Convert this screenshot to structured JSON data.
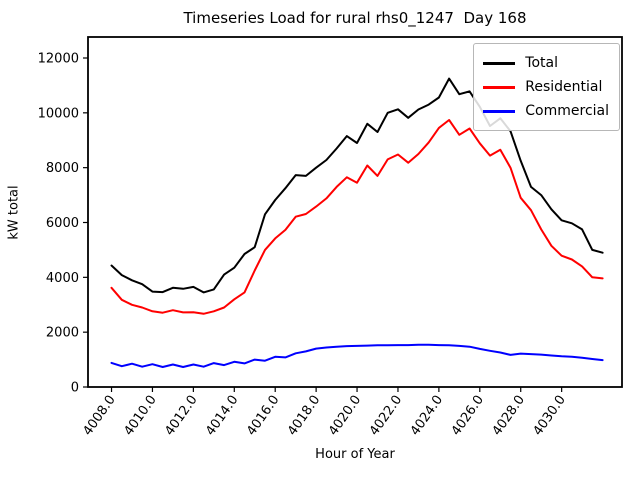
{
  "figure": {
    "title": "Timeseries Load for rural rhs0_1247  Day 168",
    "xlabel": "Hour of Year",
    "ylabel": "kW total",
    "background": "#ffffff"
  },
  "chart_data": {
    "type": "line",
    "title": "Timeseries Load for rural rhs0_1247  Day 168",
    "xlabel": "Hour of Year",
    "ylabel": "kW total",
    "grid": false,
    "legend_position": "upper right",
    "xlim": [
      4006.85,
      4032.95
    ],
    "ylim": [
      0,
      12766
    ],
    "xticks": [
      4008,
      4010,
      4012,
      4014,
      4016,
      4018,
      4020,
      4022,
      4024,
      4026,
      4028,
      4030
    ],
    "xtick_labels": [
      "4008.0",
      "4010.0",
      "4012.0",
      "4014.0",
      "4016.0",
      "4018.0",
      "4020.0",
      "4022.0",
      "4024.0",
      "4026.0",
      "4028.0",
      "4030.0"
    ],
    "yticks": [
      0,
      2000,
      4000,
      6000,
      8000,
      10000,
      12000
    ],
    "ytick_labels": [
      "0",
      "2000",
      "4000",
      "6000",
      "8000",
      "10000",
      "12000"
    ],
    "x": [
      4008.0,
      4008.5,
      4009.0,
      4009.5,
      4010.0,
      4010.5,
      4011.0,
      4011.5,
      4012.0,
      4012.5,
      4013.0,
      4013.5,
      4014.0,
      4014.5,
      4015.0,
      4015.5,
      4016.0,
      4016.5,
      4017.0,
      4017.5,
      4018.0,
      4018.5,
      4019.0,
      4019.5,
      4020.0,
      4020.5,
      4021.0,
      4021.5,
      4022.0,
      4022.5,
      4023.0,
      4023.5,
      4024.0,
      4024.5,
      4025.0,
      4025.5,
      4026.0,
      4026.5,
      4027.0,
      4027.5,
      4028.0,
      4028.5,
      4029.0,
      4029.5,
      4030.0,
      4030.5,
      4031.0,
      4031.5,
      4032.0
    ],
    "series": [
      {
        "name": "Total",
        "color": "#000000",
        "values": [
          4430,
          4080,
          3890,
          3750,
          3480,
          3460,
          3620,
          3580,
          3650,
          3450,
          3560,
          4100,
          4350,
          4850,
          5100,
          6300,
          6820,
          7250,
          7730,
          7700,
          8000,
          8280,
          8700,
          9150,
          8900,
          9600,
          9300,
          10000,
          10130,
          9820,
          10120,
          10300,
          10560,
          11250,
          10680,
          10780,
          10220,
          9520,
          9800,
          9330,
          8250,
          7300,
          7000,
          6480,
          6080,
          5970,
          5750,
          5000,
          4900
        ]
      },
      {
        "name": "Residential",
        "color": "#ff0000",
        "values": [
          3620,
          3180,
          3000,
          2900,
          2760,
          2710,
          2800,
          2720,
          2730,
          2670,
          2760,
          2900,
          3200,
          3450,
          4250,
          5000,
          5420,
          5730,
          6210,
          6310,
          6580,
          6880,
          7300,
          7650,
          7450,
          8080,
          7700,
          8300,
          8480,
          8180,
          8500,
          8920,
          9450,
          9740,
          9200,
          9430,
          8890,
          8440,
          8650,
          8000,
          6900,
          6450,
          5750,
          5150,
          4790,
          4650,
          4400,
          4000,
          3960
        ]
      },
      {
        "name": "Commercial",
        "color": "#0000ff",
        "values": [
          880,
          760,
          850,
          740,
          830,
          730,
          820,
          730,
          820,
          740,
          870,
          800,
          920,
          860,
          1000,
          960,
          1100,
          1080,
          1230,
          1300,
          1400,
          1440,
          1470,
          1490,
          1500,
          1510,
          1520,
          1520,
          1530,
          1530,
          1540,
          1540,
          1530,
          1520,
          1500,
          1470,
          1390,
          1320,
          1260,
          1170,
          1220,
          1200,
          1180,
          1150,
          1120,
          1100,
          1070,
          1020,
          980
        ]
      }
    ]
  }
}
